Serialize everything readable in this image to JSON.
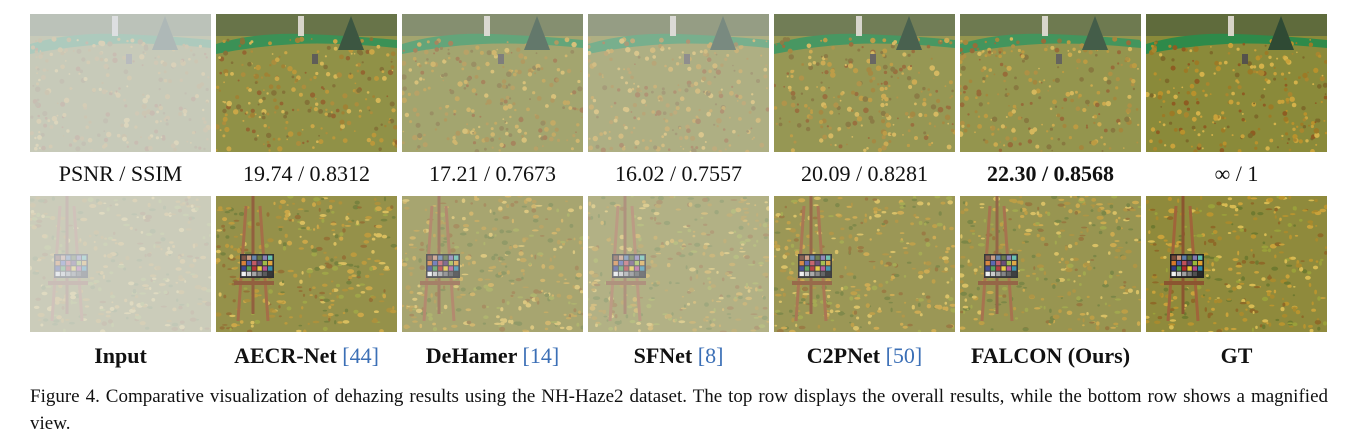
{
  "metrics_header": "PSNR / SSIM",
  "methods": [
    {
      "id": "input",
      "name": "Input",
      "ref": "",
      "metric": "",
      "haze": 0.72
    },
    {
      "id": "aecr",
      "name": "AECR-Net",
      "ref": "[44]",
      "metric": "19.74 / 0.8312",
      "haze": 0.08
    },
    {
      "id": "dehamer",
      "name": "DeHamer",
      "ref": "[14]",
      "metric": "17.21 / 0.7673",
      "haze": 0.3
    },
    {
      "id": "sfnet",
      "name": "SFNet",
      "ref": "[8]",
      "metric": "16.02 / 0.7557",
      "haze": 0.42
    },
    {
      "id": "c2pnet",
      "name": "C2PNet",
      "ref": "[50]",
      "metric": "20.09 / 0.8281",
      "haze": 0.15
    },
    {
      "id": "falcon",
      "name": "FALCON (Ours)",
      "ref": "",
      "metric": "22.30 / 0.8568",
      "haze": 0.12
    },
    {
      "id": "gt",
      "name": "GT",
      "ref": "",
      "metric": "∞ / 1",
      "haze": 0.0
    }
  ],
  "caption": "Figure 4.  Comparative visualization of dehazing results using the NH-Haze2 dataset. The top row displays the overall results, while the bottom row shows a magnified view."
}
